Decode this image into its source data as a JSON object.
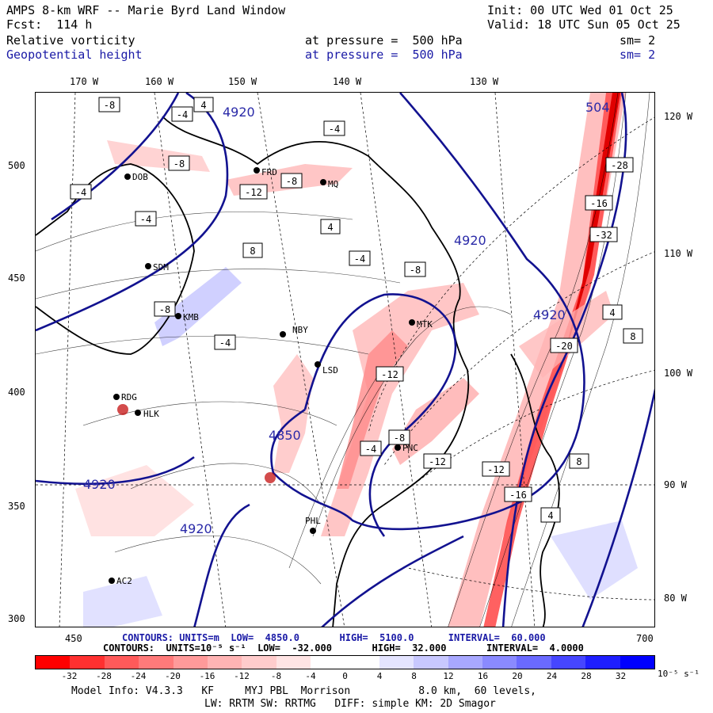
{
  "header": {
    "model_title": "AMPS 8-km WRF -- Marie Byrd Land Window",
    "init": "Init: 00 UTC Wed 01 Oct 25",
    "fcst": "Fcst:  114 h",
    "valid": "Valid: 18 UTC Sun 05 Oct 25",
    "field1": "Relative vorticity",
    "field1_level": "at pressure =  500 hPa",
    "field1_sm": "sm= 2",
    "field2": "Geopotential height",
    "field2_level": "at pressure =  500 hPa",
    "field2_sm": "sm= 2"
  },
  "axes": {
    "top_lon": [
      "170 W",
      "160 W",
      "150 W",
      "140 W",
      "130 W"
    ],
    "right_lon": [
      "120 W",
      "110 W",
      "100 W",
      "90 W",
      "80 W"
    ],
    "left_y": [
      "500",
      "450",
      "400",
      "350",
      "300"
    ],
    "bottom_x": [
      "450",
      "700"
    ]
  },
  "stations": [
    "FRD",
    "MQ",
    "SDM",
    "KMB",
    "NBY",
    "LSD",
    "MTK",
    "PNC",
    "PHL",
    "AC2",
    "HLK",
    "RDG",
    "DOB"
  ],
  "contour_labels": {
    "vorticity": [
      "-8",
      "-4",
      "-4",
      "4",
      "-8",
      "-4",
      "-12",
      "-8",
      "-8",
      "-4",
      "-4",
      "4",
      "8",
      "-4",
      "-8",
      "-12",
      "-16",
      "-20",
      "-28",
      "-32",
      "4",
      "8",
      "-4",
      "-12",
      "-8",
      "-16",
      "-12",
      "4",
      "8"
    ],
    "height": [
      "4920",
      "4920",
      "4920",
      "4920",
      "4920",
      "4850",
      "504"
    ]
  },
  "footer": {
    "contours_height": "CONTOURS: UNITS=m  LOW=  4850.0       HIGH=  5100.0      INTERVAL=  60.000",
    "contours_vort": "CONTOURS:  UNITS=10⁻⁵ s⁻¹  LOW=  -32.000       HIGH=  32.000       INTERVAL=  4.0000",
    "model_info": "Model Info: V4.3.3   KF     MYJ PBL  Morrison           8.0 km,  60 levels,",
    "model_info2": "LW: RRTM SW: RRTMG   DIFF: simple KM: 2D Smagor"
  },
  "colorbar": {
    "labels": [
      "-32",
      "-28",
      "-24",
      "-20",
      "-16",
      "-12",
      "-8",
      "-4",
      "0",
      "4",
      "8",
      "12",
      "16",
      "20",
      "24",
      "28",
      "32"
    ],
    "unit": "10⁻⁵ s⁻¹",
    "colors": [
      "#ff0000",
      "#ff3030",
      "#ff5a5a",
      "#ff7a7a",
      "#ff9a9a",
      "#ffb4b4",
      "#ffcccc",
      "#ffe4e4",
      "#ffffff",
      "#ffffff",
      "#e4e4ff",
      "#c8c8ff",
      "#a8a8ff",
      "#8a8aff",
      "#6a6aff",
      "#4646ff",
      "#1e1eff",
      "#0000ff"
    ]
  }
}
